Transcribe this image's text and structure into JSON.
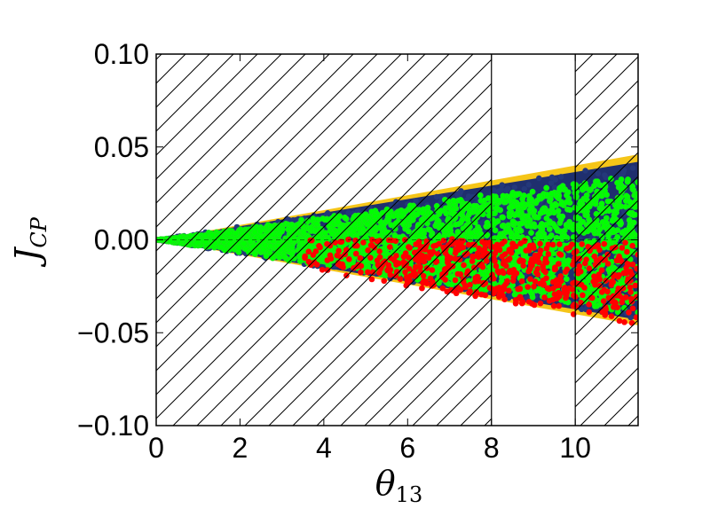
{
  "chart_data": {
    "type": "scatter",
    "title": "",
    "xlabel_main": "θ",
    "xlabel_sub": "13",
    "ylabel_main": "J",
    "ylabel_sub": "CP",
    "xlim": [
      0,
      11.5
    ],
    "ylim": [
      -0.1,
      0.1
    ],
    "xticks": [
      0,
      2,
      4,
      6,
      8,
      10
    ],
    "xtick_labels": [
      "0",
      "2",
      "4",
      "6",
      "8",
      "10"
    ],
    "yticks": [
      0.1,
      0.05,
      0.0,
      -0.05,
      -0.1
    ],
    "ytick_labels": [
      "0.10",
      "0.05",
      "0.00",
      "−0.05",
      "−0.10"
    ],
    "grid": false,
    "reference_line": {
      "y": 0.0,
      "style": "dashed"
    },
    "excluded_regions": [
      {
        "x_from": 0,
        "x_to": 8,
        "pattern": "hatched"
      },
      {
        "x_from": 10,
        "x_to": 11.5,
        "pattern": "hatched"
      }
    ],
    "series": [
      {
        "color": "#f5c518",
        "shape": "band",
        "upper_at_x_max": 0.046,
        "lower_at_x_max": -0.046,
        "origin": [
          0,
          0
        ]
      },
      {
        "color": "#1f2f6e",
        "shape": "band",
        "upper_at_x_max": 0.042,
        "lower_at_x_max": -0.043,
        "origin": [
          0,
          0
        ]
      },
      {
        "color": "#00ff00",
        "shape": "scatter",
        "approx_upper_at_x_max": 0.037,
        "approx_lower_at_x_max": -0.042
      },
      {
        "color": "#ff0000",
        "shape": "scatter",
        "x_range": [
          3.5,
          11.5
        ],
        "y_range": [
          -0.045,
          0.01
        ]
      }
    ]
  }
}
